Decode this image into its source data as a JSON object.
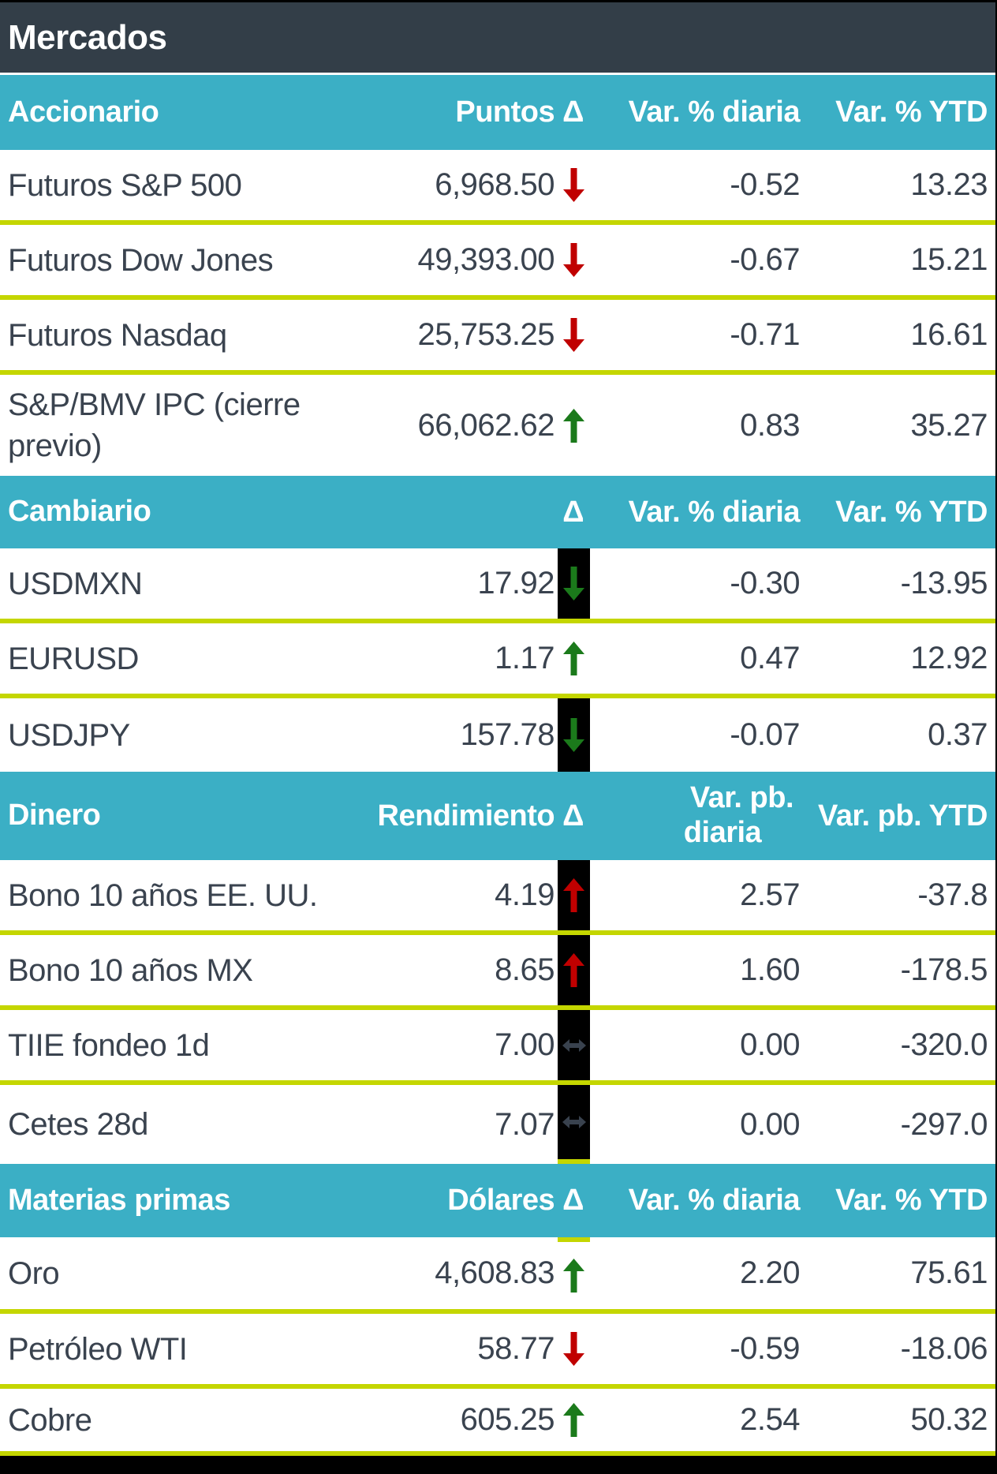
{
  "title": "Mercados",
  "colors": {
    "title_band": "#333e48",
    "section_band": "#3bafc5",
    "separator_yellow": "#c4d600",
    "text_slate": "#3a434f",
    "arrow_red": "#c00000",
    "arrow_green": "#1b7a1b",
    "arrow_slate": "#39424e",
    "bar_black": "#000000"
  },
  "chart_data": {
    "type": "table",
    "title": "Mercados",
    "sections": [
      {
        "name": "Accionario",
        "value_header": "Puntos Δ",
        "daily_header": "Var. % diaria",
        "ytd_header": "Var. % YTD",
        "rows": [
          {
            "label": "Futuros S&P 500",
            "value": "6,968.50",
            "arrow": "down",
            "arrow_color": "red",
            "black_bg": false,
            "daily": "-0.52",
            "ytd": "13.23"
          },
          {
            "label": "Futuros Dow Jones",
            "value": "49,393.00",
            "arrow": "down",
            "arrow_color": "red",
            "black_bg": false,
            "daily": "-0.67",
            "ytd": "15.21"
          },
          {
            "label": "Futuros Nasdaq",
            "value": "25,753.25",
            "arrow": "down",
            "arrow_color": "red",
            "black_bg": false,
            "daily": "-0.71",
            "ytd": "16.61"
          },
          {
            "label": "S&P/BMV IPC (cierre previo)",
            "value": "66,062.62",
            "arrow": "up",
            "arrow_color": "green",
            "black_bg": false,
            "daily": "0.83",
            "ytd": "35.27"
          }
        ]
      },
      {
        "name": "Cambiario",
        "value_header": "Δ",
        "daily_header": "Var. % diaria",
        "ytd_header": "Var. % YTD",
        "rows": [
          {
            "label": "USDMXN",
            "value": "17.92",
            "arrow": "down",
            "arrow_color": "green",
            "black_bg": true,
            "daily": "-0.30",
            "ytd": "-13.95"
          },
          {
            "label": "EURUSD",
            "value": "1.17",
            "arrow": "up",
            "arrow_color": "green",
            "black_bg": false,
            "daily": "0.47",
            "ytd": "12.92"
          },
          {
            "label": "USDJPY",
            "value": "157.78",
            "arrow": "down",
            "arrow_color": "green",
            "black_bg": true,
            "daily": "-0.07",
            "ytd": "0.37"
          }
        ]
      },
      {
        "name": "Dinero",
        "value_header": "Rendimiento Δ",
        "daily_header": "Var. pb.\ndiaria",
        "ytd_header": "Var. pb. YTD",
        "rows": [
          {
            "label": "Bono 10 años EE. UU.",
            "value": "4.19",
            "arrow": "up",
            "arrow_color": "red",
            "black_bg": true,
            "daily": "2.57",
            "ytd": "-37.8"
          },
          {
            "label": "Bono 10 años MX",
            "value": "8.65",
            "arrow": "up",
            "arrow_color": "red",
            "black_bg": true,
            "daily": "1.60",
            "ytd": "-178.5"
          },
          {
            "label": "TIIE fondeo 1d",
            "value": "7.00",
            "arrow": "flat",
            "arrow_color": "slate",
            "black_bg": true,
            "daily": "0.00",
            "ytd": "-320.0"
          },
          {
            "label": "Cetes 28d",
            "value": "7.07",
            "arrow": "flat",
            "arrow_color": "slate",
            "black_bg": true,
            "daily": "0.00",
            "ytd": "-297.0",
            "tick_bottom": true
          }
        ]
      },
      {
        "name": "Materias primas",
        "value_header": "Dólares Δ",
        "daily_header": "Var. % diaria",
        "ytd_header": "Var. % YTD",
        "rows": [
          {
            "label": "Oro",
            "value": "4,608.83",
            "arrow": "up",
            "arrow_color": "green",
            "black_bg": false,
            "daily": "2.20",
            "ytd": "75.61",
            "tick_top": true
          },
          {
            "label": "Petróleo WTI",
            "value": "58.77",
            "arrow": "down",
            "arrow_color": "red",
            "black_bg": false,
            "daily": "-0.59",
            "ytd": "-18.06"
          },
          {
            "label": "Cobre",
            "value": "605.25",
            "arrow": "up",
            "arrow_color": "green",
            "black_bg": false,
            "daily": "2.54",
            "ytd": "50.32"
          }
        ]
      }
    ]
  }
}
